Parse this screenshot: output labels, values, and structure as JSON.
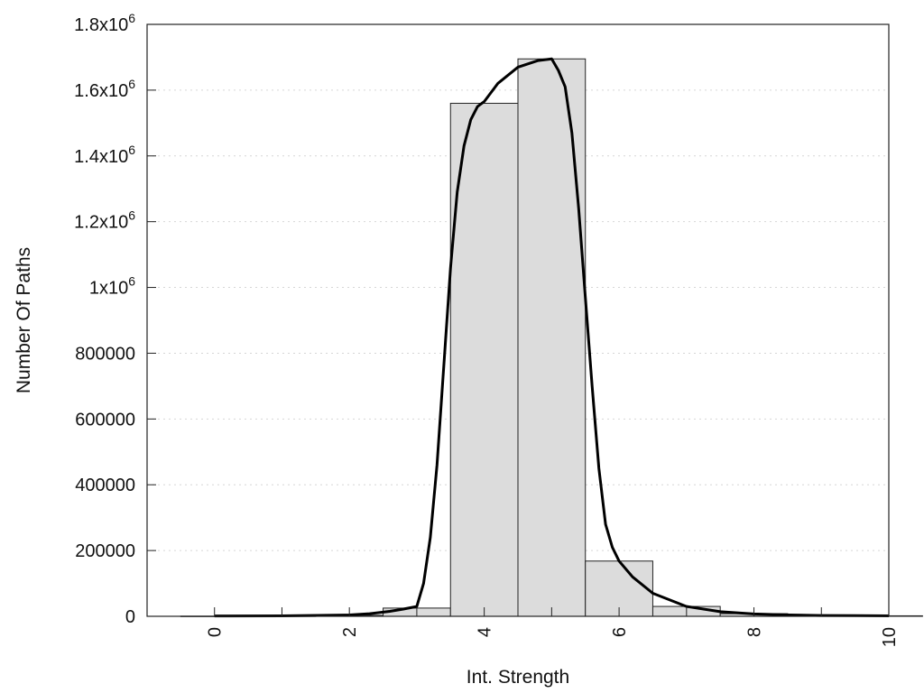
{
  "chart_data": {
    "type": "bar",
    "xlabel": "Int. Strength",
    "ylabel": "Number Of Paths",
    "xlim": [
      -1,
      10
    ],
    "ylim": [
      0,
      1800000
    ],
    "grid": true,
    "legend": "none",
    "x_ticks": [
      {
        "value": 0,
        "label": "0"
      },
      {
        "value": 2,
        "label": "2"
      },
      {
        "value": 4,
        "label": "4"
      },
      {
        "value": 6,
        "label": "6"
      },
      {
        "value": 8,
        "label": "8"
      },
      {
        "value": 10,
        "label": "10"
      }
    ],
    "y_ticks": [
      {
        "value": 0,
        "label": "0"
      },
      {
        "value": 200000,
        "label": "200000"
      },
      {
        "value": 400000,
        "label": "400000"
      },
      {
        "value": 600000,
        "label": "600000"
      },
      {
        "value": 800000,
        "label": "800000"
      },
      {
        "value": 1000000,
        "base": "1x10",
        "exp": "6"
      },
      {
        "value": 1200000,
        "base": "1.2x10",
        "exp": "6"
      },
      {
        "value": 1400000,
        "base": "1.4x10",
        "exp": "6"
      },
      {
        "value": 1600000,
        "base": "1.6x10",
        "exp": "6"
      },
      {
        "value": 1800000,
        "base": "1.8x10",
        "exp": "6"
      }
    ],
    "bin_width": 1,
    "bars": [
      {
        "x": 0,
        "value": 500
      },
      {
        "x": 1,
        "value": 1000
      },
      {
        "x": 2,
        "value": 3000
      },
      {
        "x": 3,
        "value": 25000
      },
      {
        "x": 4,
        "value": 1560000
      },
      {
        "x": 5,
        "value": 1695000
      },
      {
        "x": 6,
        "value": 168000
      },
      {
        "x": 7,
        "value": 30000
      },
      {
        "x": 8,
        "value": 8000
      },
      {
        "x": 9,
        "value": 3000
      },
      {
        "x": 10,
        "value": 1500
      }
    ],
    "fit_curve": {
      "x": [
        0,
        1,
        2,
        2.3,
        2.6,
        2.8,
        3.0,
        3.1,
        3.2,
        3.3,
        3.4,
        3.5,
        3.6,
        3.7,
        3.8,
        3.9,
        4.0,
        4.2,
        4.5,
        4.8,
        5.0,
        5.1,
        5.2,
        5.3,
        5.4,
        5.5,
        5.6,
        5.7,
        5.8,
        5.9,
        6.0,
        6.2,
        6.5,
        7.0,
        7.5,
        8.0,
        8.5,
        9.0,
        9.5,
        10.0
      ],
      "y": [
        1000,
        1500,
        4000,
        8000,
        15000,
        22000,
        30000,
        100000,
        240000,
        460000,
        760000,
        1060000,
        1290000,
        1430000,
        1510000,
        1550000,
        1565000,
        1620000,
        1670000,
        1690000,
        1695000,
        1660000,
        1610000,
        1470000,
        1240000,
        970000,
        700000,
        450000,
        280000,
        210000,
        168000,
        120000,
        70000,
        30000,
        14000,
        7000,
        4000,
        2500,
        1800,
        1500
      ]
    }
  }
}
